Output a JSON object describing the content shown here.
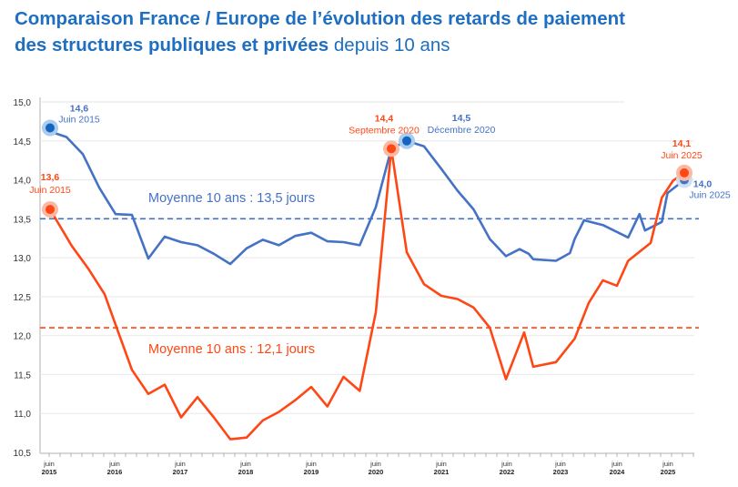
{
  "title": {
    "bold": "Comparaison France / Europe de l’évolution des retards de paiement",
    "bold2": "des structures publiques et privées",
    "light": " depuis 10 ans"
  },
  "colors": {
    "france": "#4472c4",
    "europe": "#ff4715",
    "title": "#1e6fc2"
  },
  "chart_data": {
    "type": "line",
    "ylim": [
      10.5,
      15.0
    ],
    "yticks": [
      "15,0",
      "14,5",
      "14,0",
      "13,5",
      "13,0",
      "12,5",
      "12,0",
      "11,5",
      "11,0",
      "10,5"
    ],
    "ytick_values": [
      15.0,
      14.5,
      14.0,
      13.5,
      13.0,
      12.5,
      12.0,
      11.5,
      11.0,
      10.5
    ],
    "xticks": [
      {
        "top": "juin",
        "bottom": "2015"
      },
      {
        "top": "juin",
        "bottom": "2016"
      },
      {
        "top": "juin",
        "bottom": "2017"
      },
      {
        "top": "juin",
        "bottom": "2018"
      },
      {
        "top": "juin",
        "bottom": "2019"
      },
      {
        "top": "juin",
        "bottom": "2020"
      },
      {
        "top": "juin",
        "bottom": "2021"
      },
      {
        "top": "juin",
        "bottom": "2022"
      },
      {
        "top": "juin",
        "bottom": "2023"
      },
      {
        "top": "juin",
        "bottom": "2024"
      },
      {
        "top": "juin",
        "bottom": "2025"
      }
    ],
    "grid": true,
    "series": [
      {
        "color": "#4472c4",
        "average": 13.5,
        "average_label": "Moyenne 10 ans : 13,5 jours",
        "points": [
          [
            "2015-06",
            14.62
          ],
          [
            "2015-09",
            14.55
          ],
          [
            "2015-12",
            14.33
          ],
          [
            "2016-03",
            13.9
          ],
          [
            "2016-06",
            13.56
          ],
          [
            "2016-09",
            13.55
          ],
          [
            "2016-12",
            12.99
          ],
          [
            "2017-03",
            13.27
          ],
          [
            "2017-06",
            13.2
          ],
          [
            "2017-09",
            13.16
          ],
          [
            "2017-12",
            13.05
          ],
          [
            "2018-03",
            12.92
          ],
          [
            "2018-06",
            13.12
          ],
          [
            "2018-09",
            13.23
          ],
          [
            "2018-12",
            13.16
          ],
          [
            "2019-03",
            13.28
          ],
          [
            "2019-06",
            13.32
          ],
          [
            "2019-09",
            13.21
          ],
          [
            "2019-12",
            13.2
          ],
          [
            "2020-03",
            13.16
          ],
          [
            "2020-06",
            13.65
          ],
          [
            "2020-09",
            14.4
          ],
          [
            "2020-12",
            14.5
          ],
          [
            "2021-03",
            14.43
          ],
          [
            "2021-06",
            14.14
          ],
          [
            "2021-09",
            13.86
          ],
          [
            "2021-12",
            13.62
          ],
          [
            "2022-03",
            13.24
          ],
          [
            "2022-06",
            13.02
          ],
          [
            "2022-09",
            13.11
          ],
          [
            "2022-11",
            13.05
          ],
          [
            "2022-12",
            12.98
          ],
          [
            "2023-05",
            12.96
          ],
          [
            "2023-08",
            13.06
          ],
          [
            "2023-09",
            13.24
          ],
          [
            "2023-11",
            13.48
          ],
          [
            "2024-03",
            13.42
          ],
          [
            "2024-08",
            13.26
          ],
          [
            "2024-10",
            13.56
          ],
          [
            "2024-11",
            13.35
          ],
          [
            "2025-02",
            13.46
          ],
          [
            "2025-03",
            13.83
          ],
          [
            "2025-06",
            14.0
          ]
        ],
        "annotations": [
          {
            "date": "2015-06",
            "value": "14,6",
            "label": "Juin 2015"
          },
          {
            "date": "2020-12",
            "value": "14,5",
            "label": "Décembre 2020"
          },
          {
            "date": "2025-06",
            "value": "14,0",
            "label": "Juin 2025"
          }
        ]
      },
      {
        "color": "#ff4715",
        "average": 12.1,
        "average_label": "Moyenne 10 ans : 12,1 jours",
        "points": [
          [
            "2015-06",
            13.62
          ],
          [
            "2015-10",
            13.15
          ],
          [
            "2016-01",
            12.86
          ],
          [
            "2016-04",
            12.53
          ],
          [
            "2016-06",
            12.14
          ],
          [
            "2016-09",
            11.56
          ],
          [
            "2016-12",
            11.25
          ],
          [
            "2017-03",
            11.37
          ],
          [
            "2017-06",
            10.95
          ],
          [
            "2017-09",
            11.21
          ],
          [
            "2017-12",
            10.95
          ],
          [
            "2018-03",
            10.67
          ],
          [
            "2018-06",
            10.69
          ],
          [
            "2018-09",
            10.91
          ],
          [
            "2018-12",
            11.02
          ],
          [
            "2019-03",
            11.17
          ],
          [
            "2019-06",
            11.34
          ],
          [
            "2019-09",
            11.09
          ],
          [
            "2019-12",
            11.47
          ],
          [
            "2020-03",
            11.29
          ],
          [
            "2020-06",
            12.3
          ],
          [
            "2020-09",
            14.4
          ],
          [
            "2020-12",
            13.07
          ],
          [
            "2021-03",
            12.66
          ],
          [
            "2021-06",
            12.51
          ],
          [
            "2021-09",
            12.47
          ],
          [
            "2021-12",
            12.36
          ],
          [
            "2022-03",
            12.1
          ],
          [
            "2022-06",
            11.44
          ],
          [
            "2022-10",
            12.04
          ],
          [
            "2022-12",
            11.6
          ],
          [
            "2023-05",
            11.66
          ],
          [
            "2023-09",
            11.96
          ],
          [
            "2023-12",
            12.42
          ],
          [
            "2024-03",
            12.71
          ],
          [
            "2024-06",
            12.64
          ],
          [
            "2024-08",
            12.96
          ],
          [
            "2024-12",
            13.19
          ],
          [
            "2025-02",
            13.77
          ],
          [
            "2025-04",
            13.99
          ],
          [
            "2025-06",
            14.09
          ]
        ],
        "annotations": [
          {
            "date": "2015-06",
            "value": "13,6",
            "label": "Juin 2015"
          },
          {
            "date": "2020-09",
            "value": "14,4",
            "label": "Septembre 2020"
          },
          {
            "date": "2025-06",
            "value": "14,1",
            "label": "Juin 2025"
          }
        ]
      }
    ]
  }
}
